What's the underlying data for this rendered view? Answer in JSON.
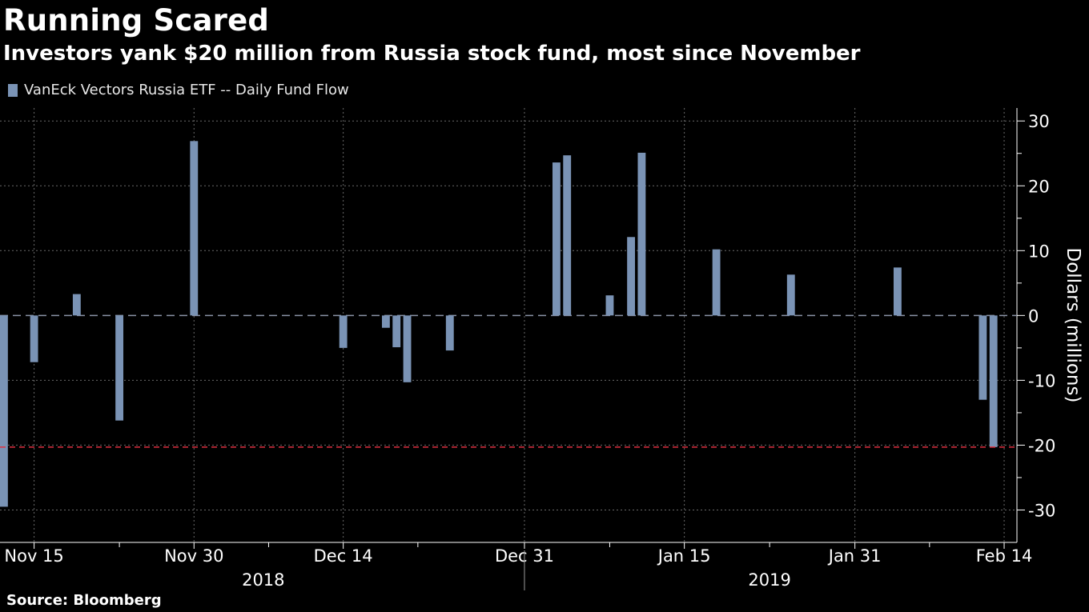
{
  "header": {
    "title": "Running Scared",
    "subtitle": "Investors yank $20 million from Russia stock fund, most since November"
  },
  "footer": {
    "source": "Source: Bloomberg"
  },
  "colors": {
    "bar": "#7a93b5",
    "reference": "#e03040",
    "grid": "#6a6a6a",
    "background": "#000000"
  },
  "chart_data": {
    "type": "bar",
    "series": [
      {
        "name": "VanEck Vectors Russia ETF -- Daily Fund Flow",
        "points": [
          {
            "x": "2018-11-12",
            "y": -29.5
          },
          {
            "x": "2018-11-13",
            "y": 0
          },
          {
            "x": "2018-11-14",
            "y": 0
          },
          {
            "x": "2018-11-15",
            "y": -7.2
          },
          {
            "x": "2018-11-16",
            "y": 0
          },
          {
            "x": "2018-11-19",
            "y": 3.3
          },
          {
            "x": "2018-11-20",
            "y": 0
          },
          {
            "x": "2018-11-21",
            "y": 0
          },
          {
            "x": "2018-11-23",
            "y": -16.2
          },
          {
            "x": "2018-11-26",
            "y": 0
          },
          {
            "x": "2018-11-27",
            "y": 0
          },
          {
            "x": "2018-11-28",
            "y": 0
          },
          {
            "x": "2018-11-29",
            "y": 0
          },
          {
            "x": "2018-11-30",
            "y": 26.9
          },
          {
            "x": "2018-12-03",
            "y": 0
          },
          {
            "x": "2018-12-04",
            "y": 0
          },
          {
            "x": "2018-12-06",
            "y": 0
          },
          {
            "x": "2018-12-07",
            "y": 0
          },
          {
            "x": "2018-12-10",
            "y": 0
          },
          {
            "x": "2018-12-11",
            "y": 0
          },
          {
            "x": "2018-12-12",
            "y": 0
          },
          {
            "x": "2018-12-13",
            "y": 0
          },
          {
            "x": "2018-12-14",
            "y": -5.0
          },
          {
            "x": "2018-12-17",
            "y": 0
          },
          {
            "x": "2018-12-18",
            "y": -1.9
          },
          {
            "x": "2018-12-19",
            "y": -4.9
          },
          {
            "x": "2018-12-20",
            "y": -10.3
          },
          {
            "x": "2018-12-21",
            "y": 0
          },
          {
            "x": "2018-12-24",
            "y": -5.4
          },
          {
            "x": "2018-12-26",
            "y": 0
          },
          {
            "x": "2018-12-27",
            "y": 0
          },
          {
            "x": "2018-12-28",
            "y": 0
          },
          {
            "x": "2018-12-31",
            "y": 0
          },
          {
            "x": "2019-01-02",
            "y": 0
          },
          {
            "x": "2019-01-03",
            "y": 23.6
          },
          {
            "x": "2019-01-04",
            "y": 24.7
          },
          {
            "x": "2019-01-07",
            "y": 0
          },
          {
            "x": "2019-01-08",
            "y": 3.1
          },
          {
            "x": "2019-01-09",
            "y": 0
          },
          {
            "x": "2019-01-10",
            "y": 12.1
          },
          {
            "x": "2019-01-11",
            "y": 25.1
          },
          {
            "x": "2019-01-14",
            "y": 0
          },
          {
            "x": "2019-01-15",
            "y": 0
          },
          {
            "x": "2019-01-16",
            "y": 0
          },
          {
            "x": "2019-01-17",
            "y": 0
          },
          {
            "x": "2019-01-18",
            "y": 10.2
          },
          {
            "x": "2019-01-22",
            "y": 0
          },
          {
            "x": "2019-01-23",
            "y": 0
          },
          {
            "x": "2019-01-24",
            "y": 0
          },
          {
            "x": "2019-01-25",
            "y": 6.3
          },
          {
            "x": "2019-01-28",
            "y": 0
          },
          {
            "x": "2019-01-29",
            "y": 0
          },
          {
            "x": "2019-01-30",
            "y": 0
          },
          {
            "x": "2019-01-31",
            "y": 0
          },
          {
            "x": "2019-02-01",
            "y": 0
          },
          {
            "x": "2019-02-04",
            "y": 7.4
          },
          {
            "x": "2019-02-05",
            "y": 0
          },
          {
            "x": "2019-02-06",
            "y": 0
          },
          {
            "x": "2019-02-07",
            "y": 0
          },
          {
            "x": "2019-02-08",
            "y": 0
          },
          {
            "x": "2019-02-11",
            "y": 0
          },
          {
            "x": "2019-02-12",
            "y": -13.0
          },
          {
            "x": "2019-02-13",
            "y": -20.3
          }
        ]
      }
    ],
    "title": "Running Scared",
    "subtitle": "Investors yank $20 million from Russia stock fund, most since November",
    "ylabel": "Dollars (millions)",
    "ylim": [
      -35,
      32
    ],
    "yticks": [
      30,
      20,
      10,
      0,
      -10,
      -20,
      -30
    ],
    "xlim": [
      "2018-11-12",
      "2019-02-15"
    ],
    "xticks": [
      {
        "date": "2018-11-15",
        "label": "Nov 15"
      },
      {
        "date": "2018-11-30",
        "label": "Nov 30"
      },
      {
        "date": "2018-12-14",
        "label": "Dec 14"
      },
      {
        "date": "2018-12-31",
        "label": "Dec 31"
      },
      {
        "date": "2019-01-15",
        "label": "Jan 15"
      },
      {
        "date": "2019-01-31",
        "label": "Jan 31"
      },
      {
        "date": "2019-02-14",
        "label": "Feb 14"
      }
    ],
    "year_labels": [
      {
        "label": "2018",
        "from": "2018-11-12",
        "to": "2018-12-31"
      },
      {
        "label": "2019",
        "from": "2018-12-31",
        "to": "2019-02-15"
      }
    ],
    "reference_line": {
      "y": -20.3,
      "style": "dashed"
    },
    "grid": true,
    "legend": "top-left"
  }
}
